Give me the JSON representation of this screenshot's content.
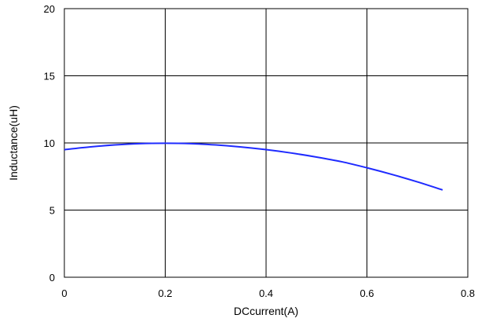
{
  "chart_data": {
    "type": "line",
    "xlabel": "DCcurrent(A)",
    "ylabel": "Inductance(uH)",
    "xlim": [
      0,
      0.8
    ],
    "ylim": [
      0,
      20
    ],
    "xticks": [
      0,
      0.2,
      0.4,
      0.6,
      0.8
    ],
    "xtick_labels": [
      "0",
      "0.2",
      "0.4",
      "0.6",
      "0.8"
    ],
    "yticks": [
      0,
      5,
      10,
      15,
      20
    ],
    "ytick_labels": [
      "0",
      "5",
      "10",
      "15",
      "20"
    ],
    "grid": true,
    "series": [
      {
        "color": "#1f2bff",
        "x": [
          0,
          0.05,
          0.1,
          0.15,
          0.2,
          0.25,
          0.3,
          0.35,
          0.4,
          0.45,
          0.5,
          0.55,
          0.6,
          0.65,
          0.7,
          0.75
        ],
        "y": [
          9.5,
          9.7,
          9.85,
          9.95,
          9.98,
          9.95,
          9.85,
          9.7,
          9.5,
          9.25,
          8.95,
          8.6,
          8.15,
          7.65,
          7.1,
          6.5
        ]
      }
    ]
  }
}
